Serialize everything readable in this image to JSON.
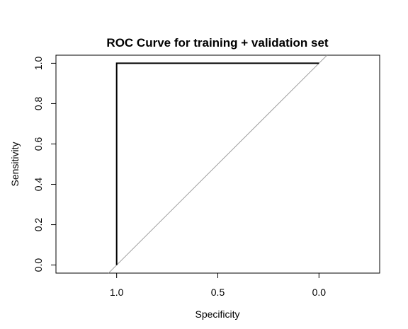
{
  "chart_data": {
    "type": "line",
    "title": "ROC Curve for training + validation set",
    "xlabel": "Specificity",
    "ylabel": "Sensitivity",
    "xlim": [
      1.3,
      -0.3
    ],
    "ylim": [
      -0.04,
      1.04
    ],
    "x_reversed": true,
    "grid": false,
    "x_ticks": [
      1.0,
      0.5,
      0.0
    ],
    "x_tick_labels": [
      "1.0",
      "0.5",
      "0.0"
    ],
    "y_ticks": [
      0.0,
      0.2,
      0.4,
      0.6,
      0.8,
      1.0
    ],
    "y_tick_labels": [
      "0.0",
      "0.2",
      "0.4",
      "0.6",
      "0.8",
      "1.0"
    ],
    "series": [
      {
        "x": [
          1.0,
          1.0,
          0.0
        ],
        "y": [
          0.0,
          1.0,
          1.0
        ],
        "color": "#000000",
        "width": "thick"
      }
    ],
    "reference_line": {
      "x": [
        1.04,
        -0.04
      ],
      "y": [
        -0.04,
        1.04
      ],
      "color": "#a0a0a0"
    }
  }
}
